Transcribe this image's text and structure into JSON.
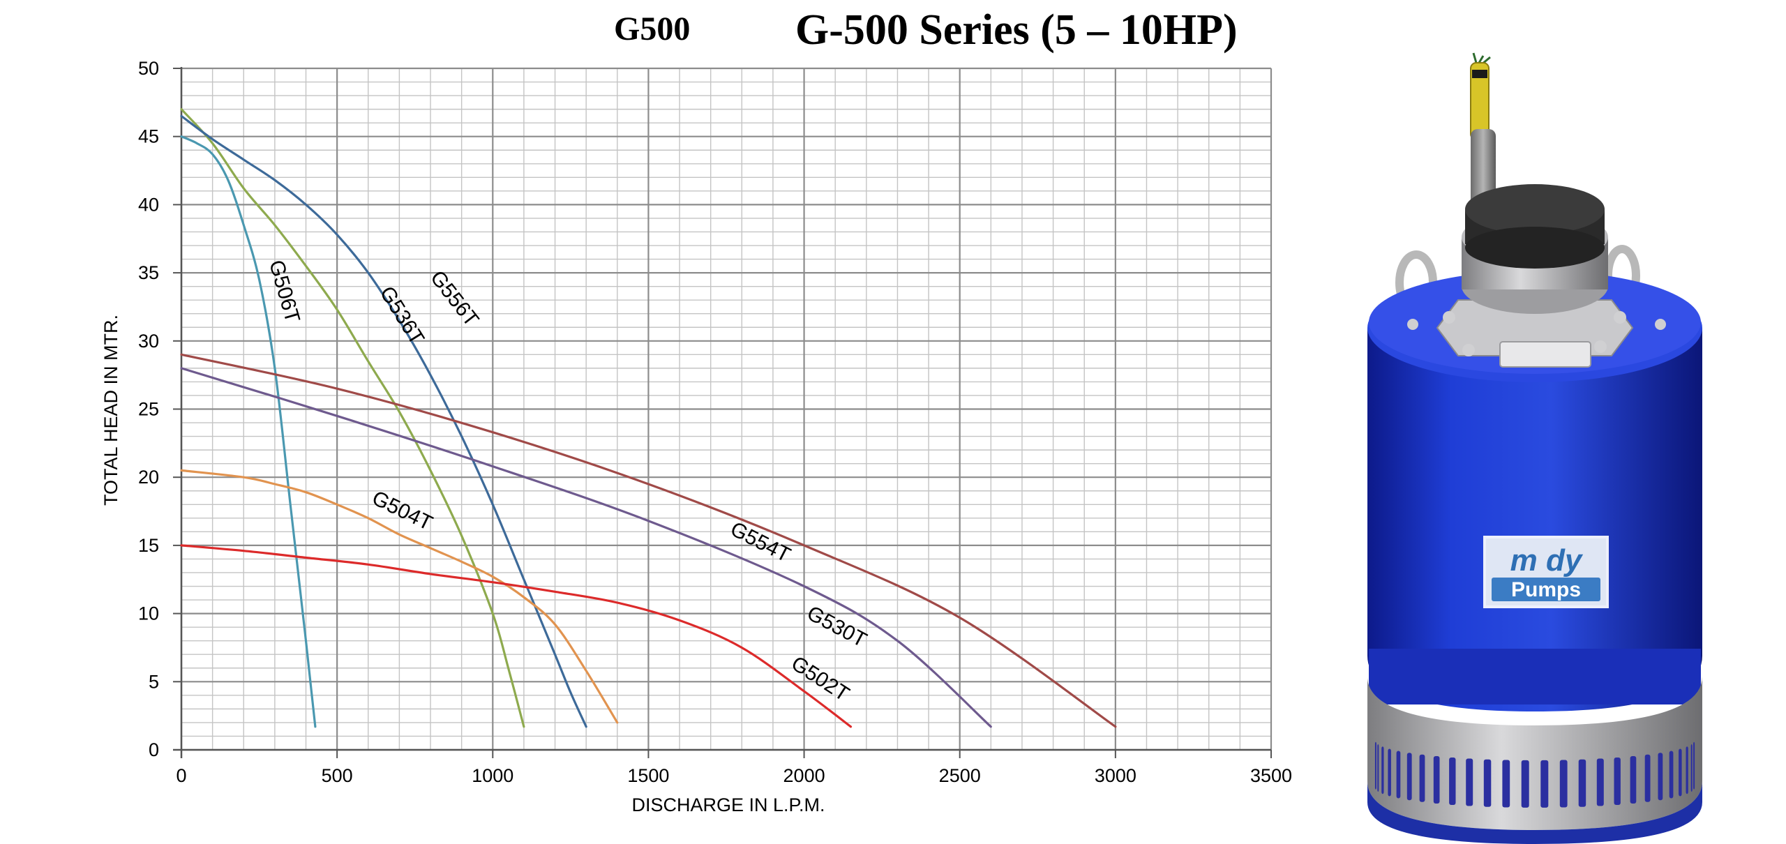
{
  "header": {
    "code": "G500",
    "title": "G-500 Series (5 – 10HP)"
  },
  "pump_image": {
    "brand_top": "m dy",
    "brand_bottom": "Pumps"
  },
  "chart_data": {
    "type": "line",
    "title": "G-500 Series (5 – 10HP)",
    "xlabel": "DISCHARGE IN L.P.M.",
    "ylabel": "TOTAL HEAD IN MTR.",
    "xlim": [
      0,
      3500
    ],
    "ylim": [
      0,
      50
    ],
    "x_ticks": [
      0,
      500,
      1000,
      1500,
      2000,
      2500,
      3000,
      3500
    ],
    "y_ticks": [
      0,
      5,
      10,
      15,
      20,
      25,
      30,
      35,
      40,
      45,
      50
    ],
    "grid": true,
    "legend": "none",
    "colors": {
      "G506T": "#4a98b0",
      "G536T": "#8eaa4e",
      "G556T": "#3d6a99",
      "G554T": "#a04a48",
      "G530T": "#6e5a8e",
      "G504T": "#e1934f",
      "G502T": "#dc2a2a"
    },
    "series": [
      {
        "name": "G506T",
        "points": [
          [
            0,
            45
          ],
          [
            50,
            44.5
          ],
          [
            100,
            43.7
          ],
          [
            150,
            41.8
          ],
          [
            200,
            38.5
          ],
          [
            250,
            34.5
          ],
          [
            300,
            28
          ],
          [
            350,
            18
          ],
          [
            400,
            8
          ],
          [
            430,
            1.7
          ]
        ]
      },
      {
        "name": "G536T",
        "points": [
          [
            0,
            47
          ],
          [
            100,
            44.5
          ],
          [
            200,
            41.2
          ],
          [
            300,
            38.5
          ],
          [
            400,
            35.5
          ],
          [
            500,
            32.3
          ],
          [
            600,
            28.5
          ],
          [
            700,
            24.8
          ],
          [
            800,
            20.5
          ],
          [
            900,
            15.7
          ],
          [
            1000,
            10
          ],
          [
            1050,
            6
          ],
          [
            1100,
            1.7
          ]
        ]
      },
      {
        "name": "G556T",
        "points": [
          [
            0,
            46.5
          ],
          [
            100,
            44.8
          ],
          [
            200,
            43.3
          ],
          [
            300,
            41.8
          ],
          [
            400,
            40
          ],
          [
            500,
            37.8
          ],
          [
            600,
            35
          ],
          [
            700,
            31.5
          ],
          [
            800,
            27.5
          ],
          [
            900,
            23
          ],
          [
            1000,
            18
          ],
          [
            1100,
            12.5
          ],
          [
            1200,
            7
          ],
          [
            1250,
            4.2
          ],
          [
            1300,
            1.7
          ]
        ]
      },
      {
        "name": "G554T",
        "points": [
          [
            0,
            29
          ],
          [
            500,
            26.5
          ],
          [
            1000,
            23.3
          ],
          [
            1500,
            19.5
          ],
          [
            2000,
            15
          ],
          [
            2500,
            9.7
          ],
          [
            3000,
            1.7
          ]
        ]
      },
      {
        "name": "G530T",
        "points": [
          [
            0,
            28
          ],
          [
            500,
            24.5
          ],
          [
            1000,
            20.8
          ],
          [
            1500,
            16.8
          ],
          [
            2000,
            12
          ],
          [
            2300,
            8
          ],
          [
            2600,
            1.7
          ]
        ]
      },
      {
        "name": "G504T",
        "points": [
          [
            0,
            20.5
          ],
          [
            200,
            20.0
          ],
          [
            300,
            19.5
          ],
          [
            400,
            18.9
          ],
          [
            500,
            18.0
          ],
          [
            600,
            17.0
          ],
          [
            700,
            15.8
          ],
          [
            800,
            14.8
          ],
          [
            900,
            13.8
          ],
          [
            1000,
            12.7
          ],
          [
            1100,
            11.2
          ],
          [
            1200,
            9.2
          ],
          [
            1300,
            5.8
          ],
          [
            1400,
            2
          ]
        ]
      },
      {
        "name": "G502T",
        "points": [
          [
            0,
            15
          ],
          [
            200,
            14.6
          ],
          [
            400,
            14.1
          ],
          [
            600,
            13.6
          ],
          [
            800,
            12.9
          ],
          [
            1000,
            12.3
          ],
          [
            1200,
            11.6
          ],
          [
            1400,
            10.8
          ],
          [
            1600,
            9.5
          ],
          [
            1800,
            7.5
          ],
          [
            2000,
            4.3
          ],
          [
            2150,
            1.7
          ]
        ]
      }
    ],
    "annotations": [
      "G506T",
      "G536T",
      "G556T",
      "G554T",
      "G530T",
      "G504T",
      "G502T"
    ]
  }
}
